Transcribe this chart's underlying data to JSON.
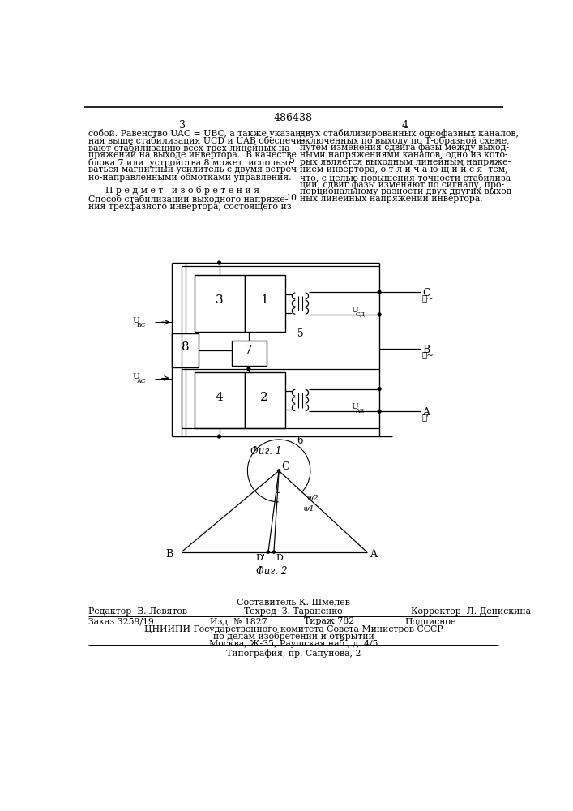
{
  "page_number": "486438",
  "col_left": "3",
  "col_right": "4",
  "text_col1_lines": [
    "собой. Равенство UAC = UBC, а также указан-",
    "ная выше стабилизация UCD и UAB обеспечи-",
    "вают стабилизацию всех трех линейных на-",
    "пряжений на выходе инвертора.  В качестве",
    "блока 7 или  устройства 8 может  использо-",
    "ваться магнитный усилитель с двумя встреч-",
    "но-направленными обмотками управления."
  ],
  "section_title": "П р е д м е т   и з о б р е т е н и я",
  "claim_text_col1": [
    "Способ стабилизации выходного напряже-",
    "ния трехфазного инвертора, состоящего из"
  ],
  "text_col2_lines": [
    "двух стабилизированных однофазных каналов,",
    "включенных по выходу по Т-образной схеме,",
    "путем изменения сдвига фазы между выход-",
    "ными напряжениями каналов, одно из кото-",
    "рых является выходным линейным напряже-",
    "нием инвертора, о т л и ч а ю щ и й с я  тем,",
    "что, с целью повышения точности стабилиза-",
    "ции, сдвиг фазы изменяют по сигналу, про-",
    "порциональному разности двух других выход-",
    "ных линейных напряжений инвертора."
  ],
  "line_number_5": "5",
  "line_number_10": "10",
  "fig1_caption": "Фиг. 1",
  "fig2_caption": "Фиг. 2",
  "footer_composer": "Составитель К. Шмелев",
  "footer_editor": "Редактор  В. Левятов",
  "footer_tech": "Техред  З. Тараненко",
  "footer_corrector": "Корректор  Л. Денискина",
  "footer_order": "Заказ 3259/19",
  "footer_issue": "Изд. № 1827",
  "footer_copies": "Тираж 782",
  "footer_subscription": "Подписное",
  "footer_org": "ЦНИИПИ Государственного комитета Совета Министров СССР",
  "footer_org2": "по делам изобретений и открытий",
  "footer_address": "Москва, Ж-35, Раушская наб., д. 4/5",
  "footer_printer": "Типография, пр. Сапунова, 2",
  "bg_color": "#ffffff",
  "text_color": "#000000"
}
